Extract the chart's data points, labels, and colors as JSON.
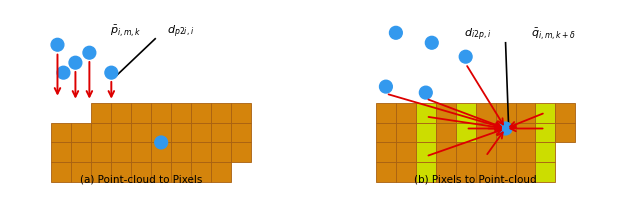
{
  "fig_width": 6.3,
  "fig_height": 2.14,
  "dpi": 100,
  "bg_color": "#ffffff",
  "orange_color": "#D4840C",
  "orange_edge": "#A86010",
  "yellow_color": "#CCDD00",
  "blue_color": "#3399EE",
  "red_color": "#DD0000",
  "black_color": "#000000",
  "caption_a": "(a) Point-cloud to Pixels",
  "caption_b": "(b) Pixels to Point-cloud",
  "label_a1": "$\\bar{p}_{i,m,k}$",
  "label_a2": "$d_{p2i,i}$",
  "label_b1": "$d_{i2p,i}$",
  "label_b2": "$\\bar{q}_{i,m,k+\\delta}$"
}
